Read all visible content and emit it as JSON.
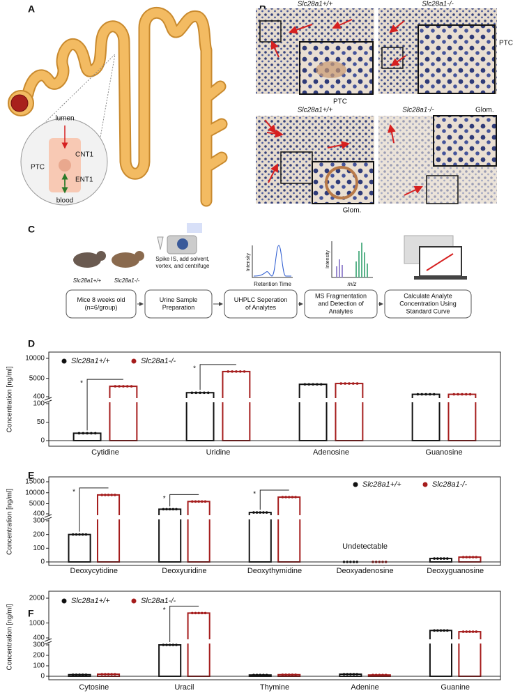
{
  "figure_a": {
    "label": "A",
    "lumen": "lumen",
    "cnt1": "CNT1",
    "ptc": "PTC",
    "ent1": "ENT1",
    "blood": "blood"
  },
  "figure_b": {
    "label": "B",
    "images": [
      {
        "genotype": "Slc28a1+/+",
        "region": "PTC"
      },
      {
        "genotype": "Slc28a1-/-",
        "region": "PTC"
      },
      {
        "genotype": "Slc28a1+/+",
        "region": "Glom."
      },
      {
        "genotype": "Slc28a1-/-",
        "region": "Glom."
      }
    ]
  },
  "figure_c": {
    "label": "C",
    "mouse_labels": [
      "Slc28a1+/+",
      "Slc28a1-/-"
    ],
    "prep_note": [
      "Spike IS, add solvent,",
      "vortex, and centrifuge"
    ],
    "chrom_y": "Intensity",
    "chrom_x": "Retention Time",
    "ms_y": "Intensity",
    "ms_x": "m/z",
    "steps": [
      [
        "Mice 8 weeks old",
        "(n=6/group)"
      ],
      [
        "Urine  Sample",
        "Preparation"
      ],
      [
        "UHPLC Seperation",
        "of Analytes"
      ],
      [
        "MS Fragmentation",
        "and Detection of",
        "Analytes"
      ],
      [
        "Calculate Analyte",
        "Concentration Using",
        "Standard Curve"
      ]
    ]
  },
  "chart_data": [
    {
      "type": "bar",
      "panel_label": "D",
      "y_label": "Concentration [ng/ml]",
      "categories": [
        "Cytidine",
        "Uridine",
        "Adenosine",
        "Guanosine"
      ],
      "series": [
        {
          "name": "Slc28a1+/+",
          "color": "#111111",
          "values": [
            20,
            1400,
            3500,
            1000
          ]
        },
        {
          "name": "Slc28a1-/-",
          "color": "#a51c1c",
          "values": [
            3000,
            6700,
            3700,
            1000
          ]
        }
      ],
      "axis_segments": [
        {
          "ylim": [
            0,
            100
          ],
          "yticks": [
            0,
            50,
            100
          ]
        },
        {
          "ylim": [
            400,
            10000
          ],
          "yticks": [
            400,
            5000,
            10000
          ]
        }
      ],
      "annotations": [
        {
          "text": "*",
          "category": "Cytidine"
        },
        {
          "text": "*",
          "category": "Uridine"
        }
      ],
      "legend": "upper left"
    },
    {
      "type": "bar",
      "panel_label": "E",
      "y_label": "Concentration [ng/ml]",
      "categories": [
        "Deoxycytidine",
        "Deoxyuridine",
        "Deoxythymidine",
        "Deoxyadenosine",
        "Deoxyguanosine"
      ],
      "series": [
        {
          "name": "Slc28a1+/+",
          "color": "#111111",
          "values": [
            200,
            2500,
            1000,
            0,
            25
          ]
        },
        {
          "name": "Slc28a1-/-",
          "color": "#a51c1c",
          "values": [
            9000,
            6000,
            8000,
            0,
            35
          ]
        }
      ],
      "axis_segments": [
        {
          "ylim": [
            0,
            300
          ],
          "yticks": [
            0,
            100,
            200,
            300
          ]
        },
        {
          "ylim": [
            400,
            15000
          ],
          "yticks": [
            400,
            5000,
            10000,
            15000
          ]
        }
      ],
      "annotations": [
        {
          "text": "*",
          "category": "Deoxycytidine"
        },
        {
          "text": "*",
          "category": "Deoxyuridine"
        },
        {
          "text": "*",
          "category": "Deoxythymidine"
        }
      ],
      "notes": [
        {
          "text": "Undetectable",
          "category": "Deoxyadenosine"
        }
      ],
      "legend": "upper right"
    },
    {
      "type": "bar",
      "panel_label": "F",
      "y_label": "Concentration [ng/ml]",
      "categories": [
        "Cytosine",
        "Uracil",
        "Thymine",
        "Adenine",
        "Guanine"
      ],
      "series": [
        {
          "name": "Slc28a1+/+",
          "color": "#111111",
          "values": [
            15,
            300,
            12,
            20,
            700
          ]
        },
        {
          "name": "Slc28a1-/-",
          "color": "#a51c1c",
          "values": [
            20,
            1400,
            15,
            12,
            650
          ]
        }
      ],
      "axis_segments": [
        {
          "ylim": [
            0,
            300
          ],
          "yticks": [
            0,
            100,
            200,
            300
          ]
        },
        {
          "ylim": [
            400,
            2000
          ],
          "yticks": [
            400,
            1000,
            2000
          ]
        }
      ],
      "annotations": [
        {
          "text": "*",
          "category": "Uracil"
        }
      ],
      "legend": "upper left"
    }
  ]
}
